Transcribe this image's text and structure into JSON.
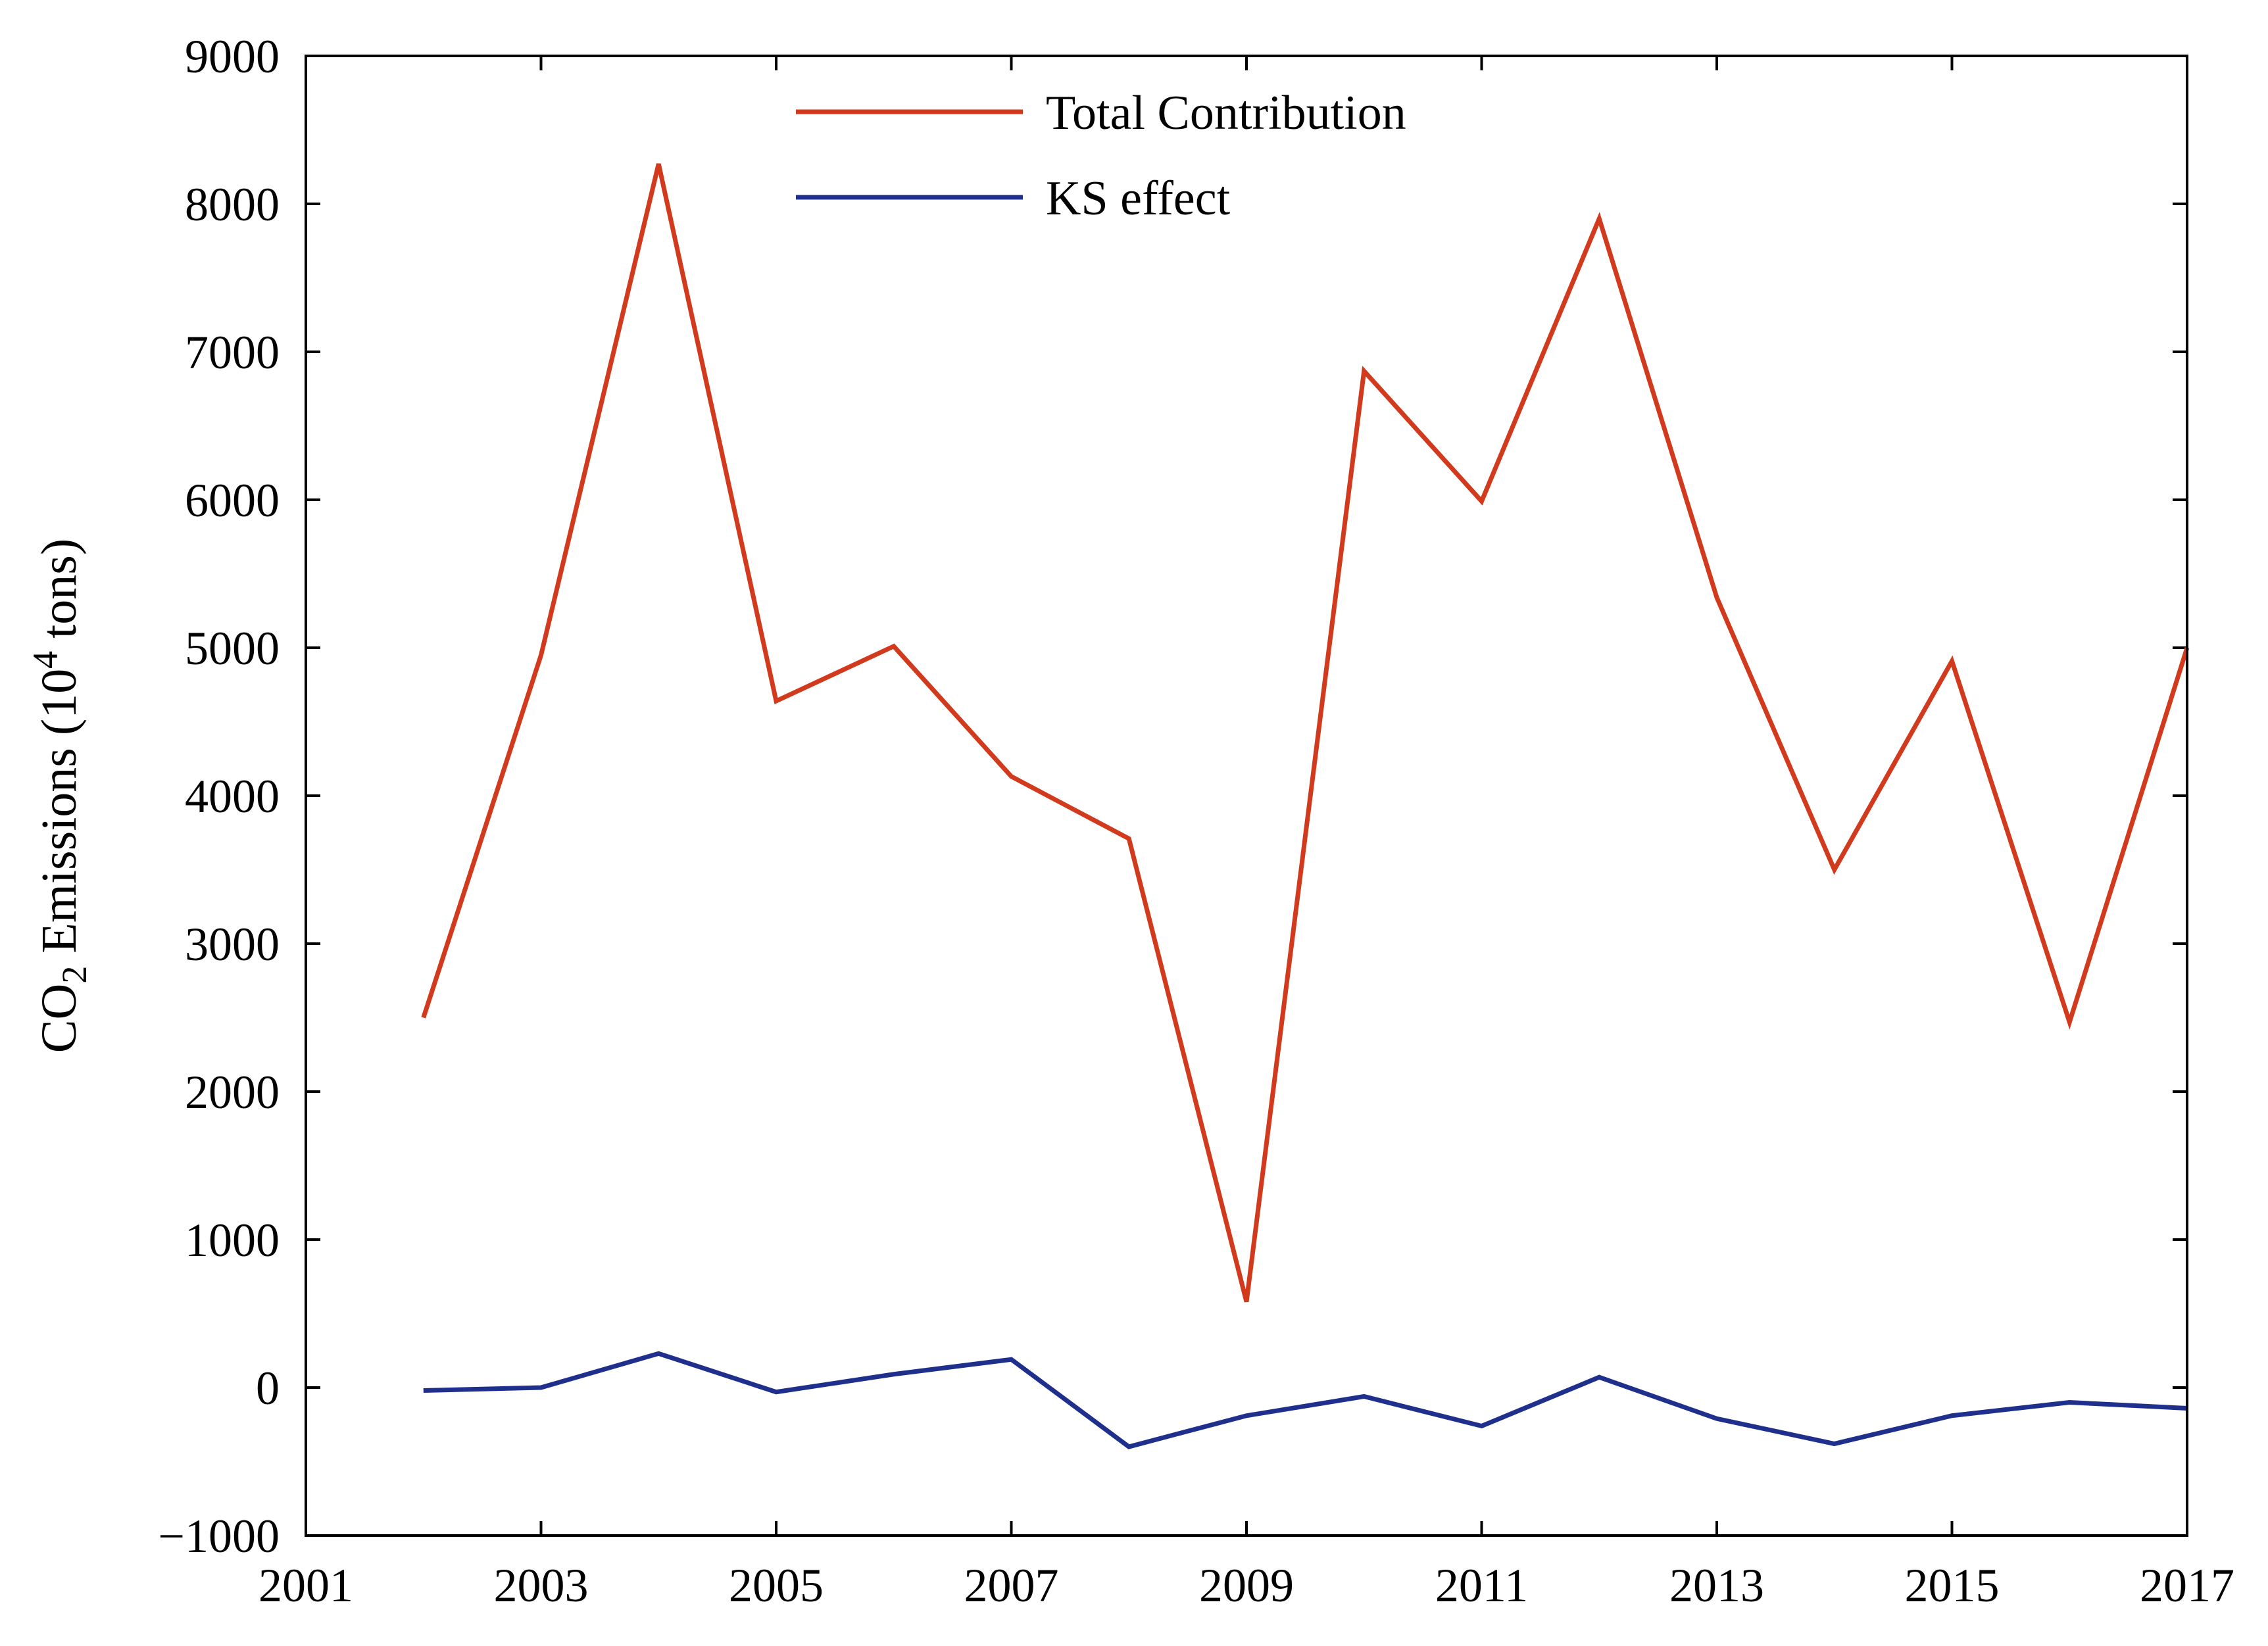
{
  "chart_data": {
    "type": "line",
    "title": "",
    "xlabel": "",
    "ylabel": {
      "text_prefix": "CO",
      "subscript": "2",
      "text_middle": " Emissions (10",
      "superscript": "4",
      "text_suffix": " tons)"
    },
    "xlim": [
      2001,
      2017
    ],
    "ylim": [
      -1000,
      9000
    ],
    "x_ticks": [
      2001,
      2003,
      2005,
      2007,
      2009,
      2011,
      2013,
      2015,
      2017
    ],
    "y_ticks": [
      -1000,
      0,
      1000,
      2000,
      3000,
      4000,
      5000,
      6000,
      7000,
      8000,
      9000
    ],
    "y_tick_labels": [
      "−1000",
      "0",
      "1000",
      "2000",
      "3000",
      "4000",
      "5000",
      "6000",
      "7000",
      "8000",
      "9000"
    ],
    "grid": false,
    "legend_position": "top-center",
    "x": [
      2002,
      2003,
      2004,
      2005,
      2006,
      2007,
      2008,
      2009,
      2010,
      2011,
      2012,
      2013,
      2014,
      2015,
      2016,
      2017
    ],
    "series": [
      {
        "name": "Total Contribution",
        "color": "#d23a1e",
        "values": [
          2500,
          4950,
          8270,
          4640,
          5010,
          4130,
          3710,
          580,
          6870,
          5990,
          7900,
          5340,
          3500,
          4910,
          2470,
          5000
        ]
      },
      {
        "name": "KS effect",
        "color": "#1f2f8c",
        "values": [
          -20,
          0,
          230,
          -30,
          90,
          190,
          -400,
          -190,
          -60,
          -260,
          70,
          -210,
          -380,
          -190,
          -100,
          -140
        ]
      }
    ]
  }
}
